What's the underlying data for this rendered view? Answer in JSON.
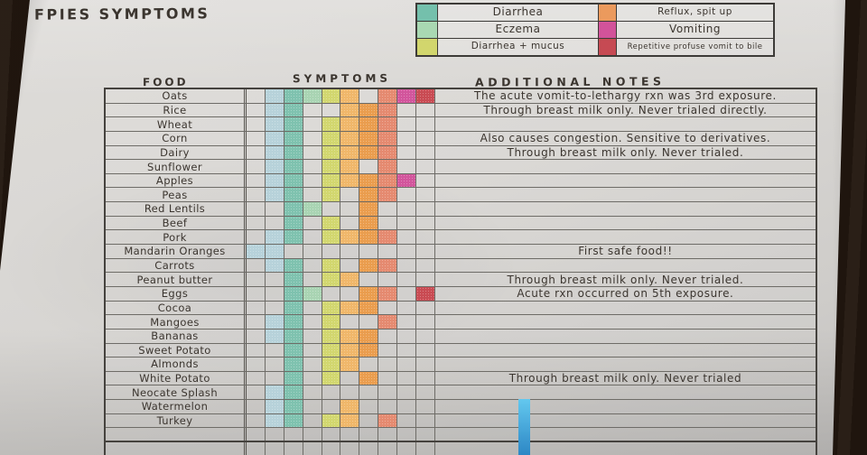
{
  "title": "FPIES SYMPTOMS",
  "colors": {
    "paper": "#d8d6d3",
    "pencil_line": "#6e6c67",
    "heavy_border": "#45423e",
    "ink": "#3b352f",
    "wood_background": "#231810",
    "blue_strip": "#46aee4"
  },
  "chart_data": {
    "type": "table",
    "title": "FPIES SYMPTOMS",
    "columns": [
      "FOOD",
      "SYMPTOMS",
      "ADDITIONAL NOTES"
    ],
    "legend": [
      {
        "label": "Diarrhea",
        "color": "#74c0ac"
      },
      {
        "label": "Eczema",
        "color": "#a9d8b2"
      },
      {
        "label": "Diarrhea + mucus",
        "color": "#d2d66d"
      },
      {
        "label": "Reflux, spit up",
        "color": "#eb9a5d"
      },
      {
        "label": "Vomiting",
        "color": "#d2539a"
      },
      {
        "label": "Repetitive profuse vomit to bile",
        "color": "#c64a53"
      }
    ],
    "cell_color_key": {
      "LB": "#b7d2da",
      "TL": "#7fc2af",
      "GN": "#a9d4b3",
      "YG": "#d2d76f",
      "OR": "#f0b76a",
      "DO": "#ea9d4e",
      "SA": "#e58a70",
      "MG": "#d2559c",
      "RD": "#c94b53"
    },
    "n_symptom_columns": 10,
    "rows": [
      {
        "food": "Oats",
        "symptoms": [
          "",
          "LB",
          "TL",
          "GN",
          "YG",
          "OR",
          "",
          "SA",
          "MG",
          "RD"
        ],
        "note": "The acute vomit-to-lethargy rxn was 3rd exposure."
      },
      {
        "food": "Rice",
        "symptoms": [
          "",
          "LB",
          "TL",
          "",
          "",
          "OR",
          "DO",
          "SA",
          "",
          ""
        ],
        "note": "Through breast milk only. Never trialed directly."
      },
      {
        "food": "Wheat",
        "symptoms": [
          "",
          "LB",
          "TL",
          "",
          "YG",
          "OR",
          "DO",
          "SA",
          "",
          ""
        ],
        "note": ""
      },
      {
        "food": "Corn",
        "symptoms": [
          "",
          "LB",
          "TL",
          "",
          "YG",
          "OR",
          "DO",
          "SA",
          "",
          ""
        ],
        "note": "Also causes congestion. Sensitive to derivatives."
      },
      {
        "food": "Dairy",
        "symptoms": [
          "",
          "LB",
          "TL",
          "",
          "YG",
          "OR",
          "DO",
          "SA",
          "",
          ""
        ],
        "note": "Through breast milk only. Never trialed."
      },
      {
        "food": "Sunflower",
        "symptoms": [
          "",
          "LB",
          "TL",
          "",
          "YG",
          "OR",
          "",
          "SA",
          "",
          ""
        ],
        "note": ""
      },
      {
        "food": "Apples",
        "symptoms": [
          "",
          "LB",
          "TL",
          "",
          "YG",
          "OR",
          "DO",
          "SA",
          "MG",
          ""
        ],
        "note": ""
      },
      {
        "food": "Peas",
        "symptoms": [
          "",
          "LB",
          "TL",
          "",
          "YG",
          "",
          "DO",
          "SA",
          "",
          ""
        ],
        "note": ""
      },
      {
        "food": "Red Lentils",
        "symptoms": [
          "",
          "",
          "TL",
          "GN",
          "",
          "",
          "DO",
          "",
          "",
          ""
        ],
        "note": ""
      },
      {
        "food": "Beef",
        "symptoms": [
          "",
          "",
          "TL",
          "",
          "YG",
          "",
          "DO",
          "",
          "",
          ""
        ],
        "note": ""
      },
      {
        "food": "Pork",
        "symptoms": [
          "",
          "LB",
          "TL",
          "",
          "YG",
          "OR",
          "DO",
          "SA",
          "",
          ""
        ],
        "note": ""
      },
      {
        "food": "Mandarin Oranges",
        "symptoms": [
          "LB",
          "LB",
          "",
          "",
          "",
          "",
          "",
          "",
          "",
          ""
        ],
        "note": "First safe food!!"
      },
      {
        "food": "Carrots",
        "symptoms": [
          "",
          "LB",
          "TL",
          "",
          "YG",
          "",
          "DO",
          "SA",
          "",
          ""
        ],
        "note": ""
      },
      {
        "food": "Peanut butter",
        "symptoms": [
          "",
          "",
          "TL",
          "",
          "YG",
          "OR",
          "",
          "",
          "",
          ""
        ],
        "note": "Through breast milk only. Never trialed."
      },
      {
        "food": "Eggs",
        "symptoms": [
          "",
          "",
          "TL",
          "GN",
          "",
          "",
          "DO",
          "SA",
          "",
          "RD"
        ],
        "note": "Acute rxn occurred on 5th exposure."
      },
      {
        "food": "Cocoa",
        "symptoms": [
          "",
          "",
          "TL",
          "",
          "YG",
          "OR",
          "DO",
          "",
          "",
          ""
        ],
        "note": ""
      },
      {
        "food": "Mangoes",
        "symptoms": [
          "",
          "LB",
          "TL",
          "",
          "YG",
          "",
          "",
          "SA",
          "",
          ""
        ],
        "note": ""
      },
      {
        "food": "Bananas",
        "symptoms": [
          "",
          "LB",
          "TL",
          "",
          "YG",
          "OR",
          "DO",
          "",
          "",
          ""
        ],
        "note": ""
      },
      {
        "food": "Sweet Potato",
        "symptoms": [
          "",
          "",
          "TL",
          "",
          "YG",
          "OR",
          "DO",
          "",
          "",
          ""
        ],
        "note": ""
      },
      {
        "food": "Almonds",
        "symptoms": [
          "",
          "",
          "TL",
          "",
          "YG",
          "OR",
          "",
          "",
          "",
          ""
        ],
        "note": ""
      },
      {
        "food": "White Potato",
        "symptoms": [
          "",
          "",
          "TL",
          "",
          "YG",
          "",
          "DO",
          "",
          "",
          ""
        ],
        "note": "Through breast milk only. Never trialed"
      },
      {
        "food": "Neocate Splash",
        "symptoms": [
          "",
          "LB",
          "TL",
          "",
          "",
          "",
          "",
          "",
          "",
          ""
        ],
        "note": ""
      },
      {
        "food": "Watermelon",
        "symptoms": [
          "",
          "LB",
          "TL",
          "",
          "",
          "OR",
          "",
          "",
          "",
          ""
        ],
        "note": ""
      },
      {
        "food": "Turkey",
        "symptoms": [
          "",
          "LB",
          "TL",
          "",
          "YG",
          "OR",
          "",
          "SA",
          "",
          ""
        ],
        "note": ""
      },
      {
        "food": "",
        "symptoms": [
          "",
          "",
          "",
          "",
          "",
          "",
          "",
          "",
          "",
          ""
        ],
        "note": ""
      },
      {
        "food": "",
        "symptoms": [
          "",
          "",
          "",
          "",
          "",
          "",
          "",
          "",
          "",
          ""
        ],
        "note": ""
      }
    ]
  }
}
